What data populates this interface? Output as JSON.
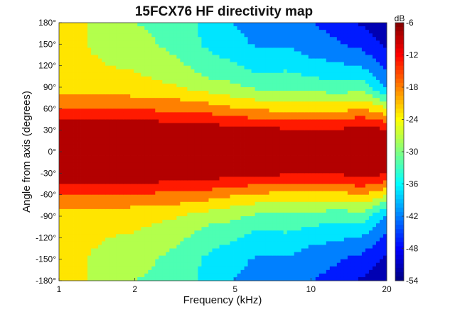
{
  "chart_data": {
    "type": "heatmap",
    "title": "15FCX76 HF directivity map",
    "xlabel": "Frequency (kHz)",
    "ylabel": "Angle from axis (degrees)",
    "xscale": "log",
    "xlim": [
      1,
      20
    ],
    "ylim": [
      -180,
      180
    ],
    "xticks": [
      1,
      2,
      5,
      10,
      20
    ],
    "xtick_labels": [
      "1",
      "2",
      "5",
      "10",
      "20"
    ],
    "yticks": [
      180,
      150,
      120,
      90,
      60,
      30,
      0,
      -30,
      -60,
      -90,
      -120,
      -150,
      -180
    ],
    "ytick_labels": [
      "180°",
      "150°",
      "120°",
      "90°",
      "60°",
      "30°",
      "0°",
      "-30°",
      "-60°",
      "-90°",
      "-120°",
      "-150°",
      "-180°"
    ],
    "colorbar": {
      "label": "dB",
      "range": [
        -54,
        -6
      ],
      "ticks": [
        -6,
        -12,
        -18,
        -24,
        -30,
        -36,
        -42,
        -48,
        -54
      ],
      "tick_labels": [
        "-6",
        "-12",
        "-18",
        "-24",
        "-30",
        "-36",
        "-42",
        "-48",
        "-54"
      ],
      "colormap": "jet",
      "bands": 10
    },
    "grid_angles_abs": [
      0,
      30,
      45,
      60,
      75,
      90,
      120,
      150,
      180
    ],
    "frequencies_khz": [
      1,
      1.5,
      2,
      3,
      4,
      5,
      6,
      8,
      10,
      13,
      16,
      20
    ],
    "values_db": [
      [
        -6,
        -7,
        -10,
        -16,
        -19,
        -22,
        -24,
        -24,
        -22
      ],
      [
        -6,
        -7,
        -10,
        -15,
        -19,
        -22,
        -25,
        -26,
        -27
      ],
      [
        -6,
        -7,
        -11,
        -16,
        -20,
        -23,
        -26,
        -28,
        -30
      ],
      [
        -6,
        -7,
        -12,
        -17,
        -21,
        -25,
        -29,
        -32,
        -32
      ],
      [
        -6,
        -8,
        -13,
        -18,
        -23,
        -28,
        -33,
        -36,
        -37
      ],
      [
        -6,
        -9,
        -14,
        -20,
        -25,
        -29,
        -34,
        -38,
        -40
      ],
      [
        -6,
        -9,
        -15,
        -21,
        -26,
        -31,
        -37,
        -40,
        -42
      ],
      [
        -6,
        -10,
        -16,
        -22,
        -27,
        -31,
        -36,
        -40,
        -42
      ],
      [
        -6,
        -10,
        -16,
        -22,
        -27,
        -32,
        -38,
        -42,
        -44
      ],
      [
        -6,
        -10,
        -16,
        -22,
        -28,
        -33,
        -39,
        -44,
        -47
      ],
      [
        -6,
        -9,
        -14,
        -20,
        -26,
        -32,
        -40,
        -46,
        -50
      ],
      [
        -6,
        -10,
        -17,
        -25,
        -33,
        -40,
        -46,
        -50,
        -52
      ]
    ]
  }
}
